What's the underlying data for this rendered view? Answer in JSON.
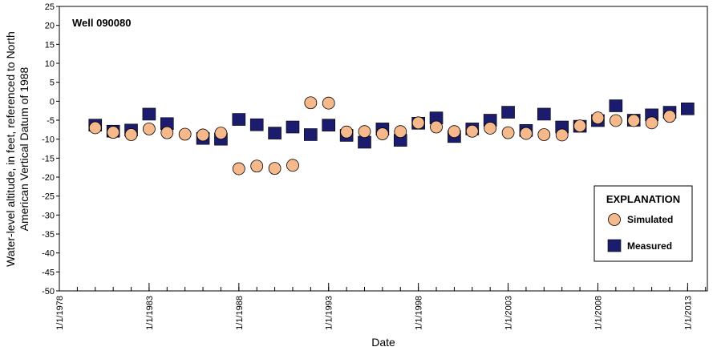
{
  "chart_data": {
    "type": "scatter",
    "well_label": "Well 090080",
    "xlabel": "Date",
    "ylabel_lines": [
      "Water-level altitude, in feet, referenced to North",
      "American Vertical Datum of 1988"
    ],
    "ylim": [
      -50,
      25
    ],
    "yticks": [
      25,
      20,
      15,
      10,
      5,
      0,
      -5,
      -10,
      -15,
      -20,
      -25,
      -30,
      -35,
      -40,
      -45,
      -50
    ],
    "xlim": [
      1978,
      2014.1
    ],
    "xtick_years": [
      1983,
      1988,
      1993,
      1998,
      2003,
      2008,
      2013
    ],
    "xtick_labels": [
      "1/1/1983",
      "1/1/1988",
      "1/1/1993",
      "1/1/1998",
      "1/1/2003",
      "1/1/2008",
      "1/1/2013"
    ],
    "xaxis_start_label": "1/1/1978",
    "legend": {
      "title": "EXPLANATION",
      "simulated_label": "Simulated",
      "measured_label": "Measured",
      "placement": "bottom-right"
    },
    "colors": {
      "simulated_fill": "#f6b98c",
      "simulated_stroke": "#000000",
      "measured_fill": "#1c1c6e"
    },
    "series": [
      {
        "name": "Simulated",
        "marker": "circle",
        "points": [
          [
            1980,
            -7.0
          ],
          [
            1981,
            -8.2
          ],
          [
            1982,
            -8.8
          ],
          [
            1983,
            -7.3
          ],
          [
            1984,
            -8.3
          ],
          [
            1985,
            -8.7
          ],
          [
            1986,
            -8.9
          ],
          [
            1987,
            -8.4
          ],
          [
            1988,
            -17.8
          ],
          [
            1989,
            -17.1
          ],
          [
            1990,
            -17.7
          ],
          [
            1991,
            -16.9
          ],
          [
            1992,
            -0.4
          ],
          [
            1993,
            -0.5
          ],
          [
            1994,
            -8.1
          ],
          [
            1995,
            -8.0
          ],
          [
            1996,
            -8.6
          ],
          [
            1997,
            -8.0
          ],
          [
            1998,
            -5.7
          ],
          [
            1999,
            -6.8
          ],
          [
            2000,
            -8.0
          ],
          [
            2001,
            -7.9
          ],
          [
            2002,
            -7.1
          ],
          [
            2003,
            -8.3
          ],
          [
            2004,
            -8.5
          ],
          [
            2005,
            -8.8
          ],
          [
            2006,
            -8.9
          ],
          [
            2007,
            -6.5
          ],
          [
            2008,
            -4.4
          ],
          [
            2009,
            -5.1
          ],
          [
            2010,
            -5.1
          ],
          [
            2011,
            -5.7
          ],
          [
            2012,
            -4.0
          ]
        ]
      },
      {
        "name": "Measured",
        "marker": "square",
        "points": [
          [
            1980,
            -6.3
          ],
          [
            1981,
            -7.9
          ],
          [
            1982,
            -7.6
          ],
          [
            1983,
            -3.4
          ],
          [
            1984,
            -5.9
          ],
          [
            1986,
            -9.8
          ],
          [
            1987,
            -10.0
          ],
          [
            1988,
            -4.8
          ],
          [
            1989,
            -6.2
          ],
          [
            1990,
            -8.4
          ],
          [
            1991,
            -6.8
          ],
          [
            1992,
            -8.8
          ],
          [
            1993,
            -6.3
          ],
          [
            1994,
            -9.0
          ],
          [
            1995,
            -10.8
          ],
          [
            1996,
            -7.3
          ],
          [
            1997,
            -10.3
          ],
          [
            1998,
            -5.8
          ],
          [
            1999,
            -4.4
          ],
          [
            2000,
            -9.3
          ],
          [
            2001,
            -7.3
          ],
          [
            2002,
            -5.0
          ],
          [
            2003,
            -2.9
          ],
          [
            2004,
            -7.7
          ],
          [
            2005,
            -3.4
          ],
          [
            2006,
            -6.8
          ],
          [
            2007,
            -6.6
          ],
          [
            2008,
            -5.1
          ],
          [
            2009,
            -1.2
          ],
          [
            2010,
            -5.0
          ],
          [
            2011,
            -3.6
          ],
          [
            2012,
            -2.9
          ],
          [
            2013,
            -2.0
          ]
        ]
      }
    ]
  }
}
